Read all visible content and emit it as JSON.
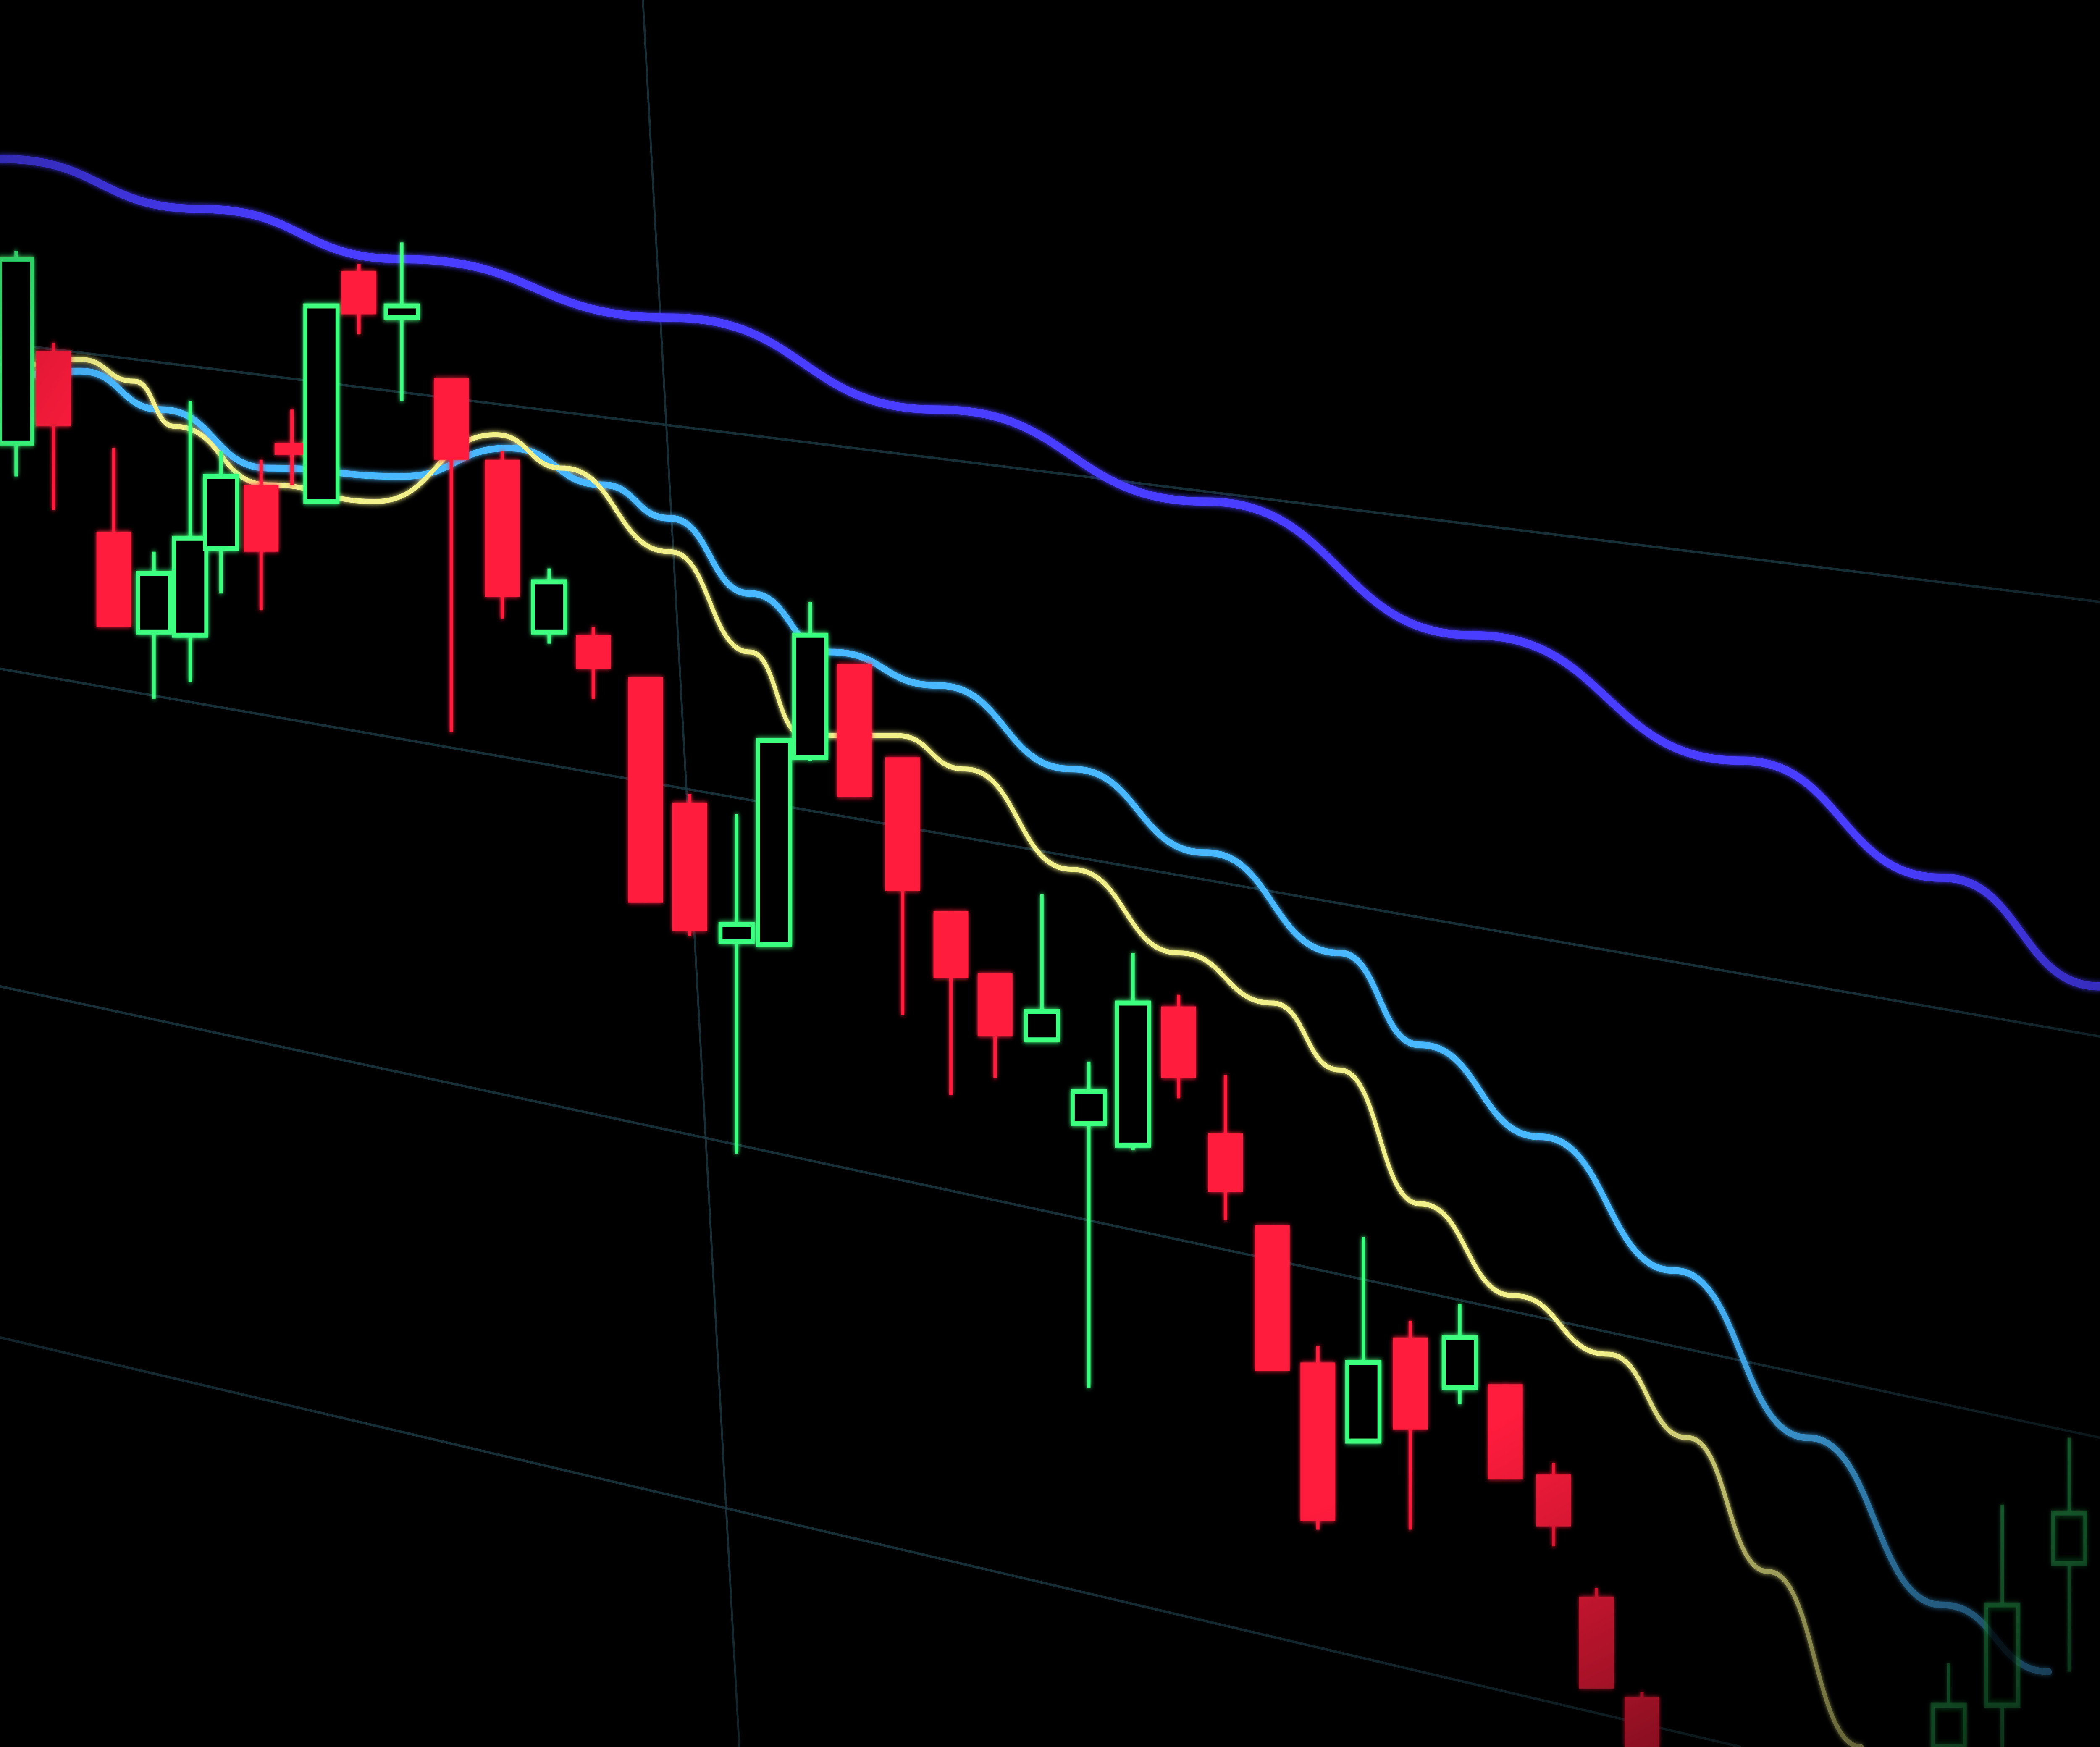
{
  "colors": {
    "background": "#000000",
    "bearish": "#ff1f3d",
    "bullish": "#3dff7f",
    "ma_slow": "#4a3cff",
    "ma_mid": "#49b8ff",
    "ma_fast": "#f2f08a",
    "grid": "#1c3a44"
  }
}
